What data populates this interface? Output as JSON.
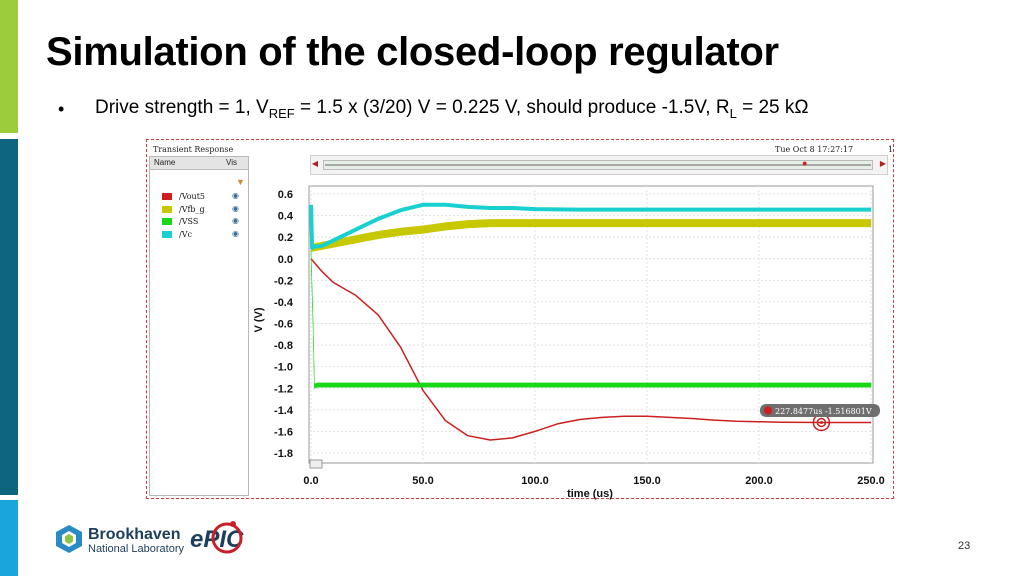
{
  "slide": {
    "title": "Simulation of the closed-loop regulator",
    "bullet_marker": "•",
    "bullet_part1": "Drive strength = 1, V",
    "bullet_sub1": "REF",
    "bullet_part2": " = 1.5 x (3/20) V = 0.225 V, should produce -1.5V, R",
    "bullet_sub2": "L",
    "bullet_part3": " = 25 kΩ",
    "page_number": "23",
    "accent_colors": [
      "#9ccb3b",
      "#0e6580",
      "#1aa6d8"
    ]
  },
  "simulator": {
    "window_title": "Transient Response",
    "timestamp": "Tue Oct 8 17:27:17",
    "corner_char": "1",
    "legend_header_name": "Name",
    "legend_header_vis": "Vis",
    "filter_icon": "filter-icon",
    "marker_label": "227.8477us -1.516801V"
  },
  "logos": {
    "bnl_line1": "Brookhaven",
    "bnl_line2": "National Laboratory",
    "epic": "ePIC"
  },
  "chart_data": {
    "type": "line",
    "xlabel": "time (us)",
    "ylabel": "V (V)",
    "xlim": [
      0,
      250
    ],
    "ylim": [
      -1.8,
      0.6
    ],
    "xticks": [
      0,
      50,
      100,
      150,
      200,
      250
    ],
    "xtick_labels": [
      "0.0",
      "50.0",
      "100.0",
      "150.0",
      "200.0",
      "250.0"
    ],
    "yticks": [
      0.6,
      0.4,
      0.2,
      0.0,
      -0.2,
      -0.4,
      -0.6,
      -0.8,
      -1.0,
      -1.2,
      -1.4,
      -1.6,
      -1.8
    ],
    "ytick_labels": [
      "0.6",
      "0.4",
      "0.2",
      "0.0",
      "-0.2",
      "-0.4",
      "-0.6",
      "-0.8",
      "-1.0",
      "-1.2",
      "-1.4",
      "-1.6",
      "-1.8"
    ],
    "grid": true,
    "series": [
      {
        "name": "/Vout5",
        "color": "#cc1f1f",
        "band": 0,
        "x": [
          0,
          5,
          10,
          20,
          30,
          40,
          50,
          60,
          70,
          80,
          90,
          100,
          110,
          120,
          130,
          140,
          150,
          160,
          170,
          180,
          190,
          200,
          210,
          220,
          230,
          240,
          250
        ],
        "y": [
          0.0,
          -0.12,
          -0.22,
          -0.34,
          -0.52,
          -0.82,
          -1.22,
          -1.5,
          -1.64,
          -1.68,
          -1.66,
          -1.6,
          -1.53,
          -1.49,
          -1.47,
          -1.46,
          -1.46,
          -1.47,
          -1.48,
          -1.495,
          -1.505,
          -1.51,
          -1.515,
          -1.516,
          -1.517,
          -1.517,
          -1.517
        ]
      },
      {
        "name": "/Vfb_g",
        "color": "#c8c800",
        "band": 0.07,
        "x": [
          0,
          10,
          20,
          30,
          40,
          50,
          60,
          70,
          80,
          90,
          100,
          150,
          200,
          250
        ],
        "y": [
          0.1,
          0.14,
          0.18,
          0.22,
          0.25,
          0.27,
          0.3,
          0.32,
          0.33,
          0.33,
          0.33,
          0.33,
          0.33,
          0.33
        ]
      },
      {
        "name": "/VSS",
        "color": "#18d818",
        "band": 0.04,
        "x": [
          0,
          1,
          1.5,
          3,
          250
        ],
        "y": [
          0.05,
          -0.65,
          -1.18,
          -1.17,
          -1.17
        ]
      },
      {
        "name": "/Vc",
        "color": "#19d0d0",
        "band": 0,
        "x": [
          0,
          0.5,
          1,
          5,
          10,
          20,
          30,
          40,
          50,
          60,
          70,
          80,
          90,
          100,
          120,
          150,
          200,
          250
        ],
        "y": [
          0.5,
          0.1,
          0.11,
          0.12,
          0.17,
          0.27,
          0.37,
          0.45,
          0.5,
          0.5,
          0.48,
          0.47,
          0.47,
          0.46,
          0.455,
          0.455,
          0.455,
          0.455
        ]
      }
    ],
    "marker": {
      "x": 227.8477,
      "y": -1.516801
    }
  }
}
